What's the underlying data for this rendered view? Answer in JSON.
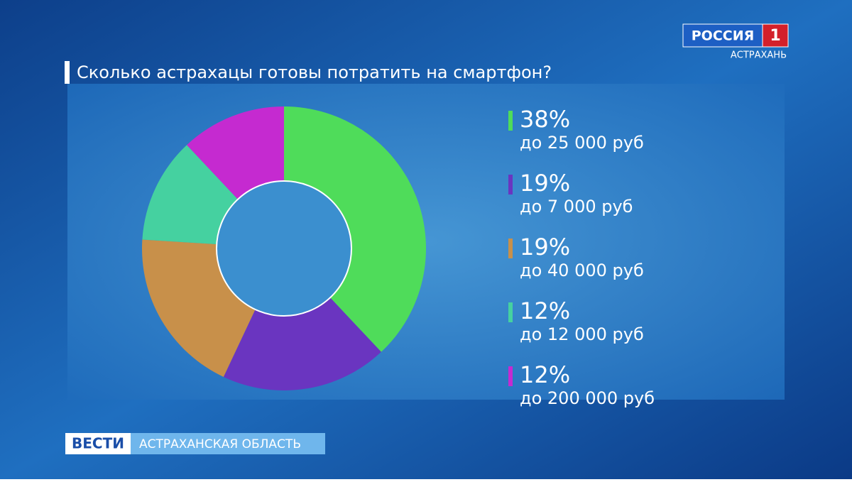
{
  "channel": {
    "name": "РОССИЯ",
    "number": "1",
    "region": "АСТРАХАНЬ"
  },
  "ticker": {
    "brand": "ВЕСТИ",
    "region": "АСТРАХАНСКАЯ ОБЛАСТЬ"
  },
  "chart_data": {
    "type": "pie",
    "donut": true,
    "title": "Сколько астрахацы готовы потратить на смартфон?",
    "categories": [
      "до 25 000 руб",
      "до 7 000 руб",
      "до 40 000 руб",
      "до 12 000 руб",
      "до 200 000 руб"
    ],
    "values": [
      38,
      19,
      19,
      12,
      12
    ],
    "value_labels": [
      "38%",
      "19%",
      "19%",
      "12%",
      "12%"
    ],
    "colors": [
      "#4fdc5a",
      "#6a35c0",
      "#c8904a",
      "#45d1a0",
      "#c52ad0"
    ]
  }
}
